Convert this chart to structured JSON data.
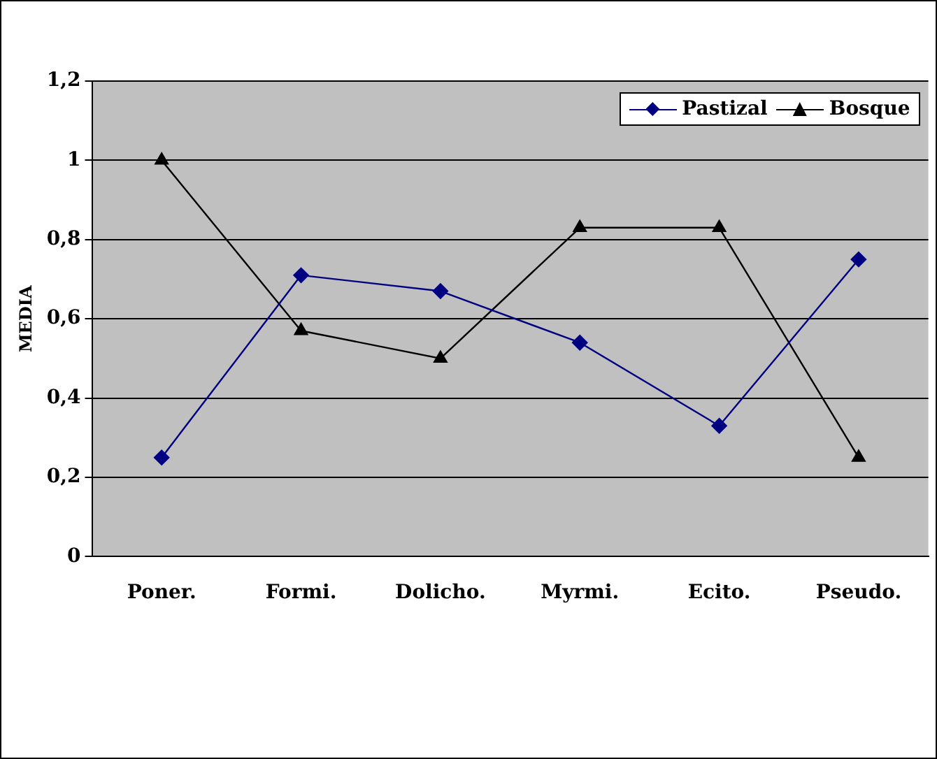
{
  "chart_data": {
    "type": "line",
    "ylabel": "MEDIA",
    "categories": [
      "Poner.",
      "Formi.",
      "Dolicho.",
      "Myrmi.",
      "Ecito.",
      "Pseudo."
    ],
    "series": [
      {
        "name": "Pastizal",
        "color": "#000080",
        "marker": "diamond",
        "values": [
          0.25,
          0.71,
          0.67,
          0.54,
          0.33,
          0.75
        ]
      },
      {
        "name": "Bosque",
        "color": "#000000",
        "marker": "triangle",
        "values": [
          1,
          0.57,
          0.5,
          0.83,
          0.83,
          0.25
        ]
      }
    ],
    "ylim": [
      0,
      1.2
    ],
    "yticks": [
      0,
      {
        "value": 0.2,
        "label": "0,2"
      },
      {
        "value": 0.4,
        "label": "0,4"
      },
      {
        "value": 0.6,
        "label": "0,6"
      },
      {
        "value": 0.8,
        "label": "0,8"
      },
      1,
      {
        "value": 1.2,
        "label": "1,2"
      }
    ],
    "grid": "y",
    "legend": "top right"
  }
}
